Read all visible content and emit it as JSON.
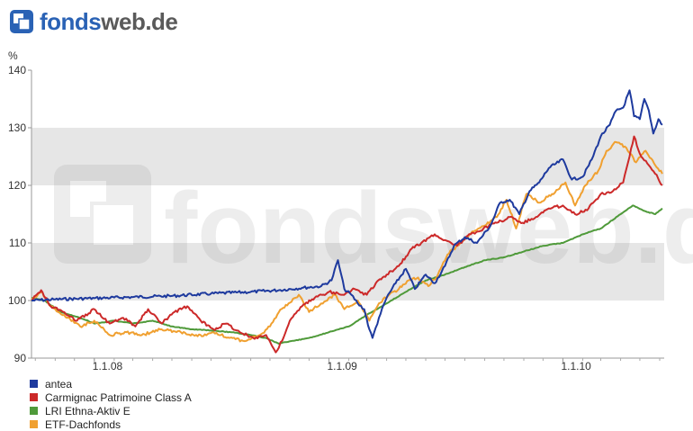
{
  "brand": {
    "prefix": "fonds",
    "suffix": "web.de"
  },
  "watermark_text": "fondsweb.de",
  "chart_data": {
    "type": "line",
    "title": "",
    "xlabel": "",
    "ylabel": "%",
    "ylim": [
      90,
      140
    ],
    "yticks": [
      90,
      100,
      110,
      120,
      130,
      140
    ],
    "xlim": [
      "2007-09-25",
      "2010-06-08"
    ],
    "xticks": [
      {
        "date": "2008-01-01",
        "label": "1.1.08"
      },
      {
        "date": "2009-01-01",
        "label": "1.1.09"
      },
      {
        "date": "2010-01-01",
        "label": "1.1.10"
      }
    ],
    "grid": "alternating horizontal bands",
    "legend_position": "bottom-left",
    "series": [
      {
        "name": "antea",
        "color": "#1e3a9e",
        "points": [
          [
            "2007-09-25",
            100.0
          ],
          [
            "2007-11-01",
            100.2
          ],
          [
            "2008-01-01",
            100.4
          ],
          [
            "2008-03-01",
            100.6
          ],
          [
            "2008-05-01",
            100.8
          ],
          [
            "2008-07-01",
            101.2
          ],
          [
            "2008-09-01",
            101.5
          ],
          [
            "2008-10-15",
            101.8
          ],
          [
            "2008-11-20",
            102.2
          ],
          [
            "2008-12-20",
            102.5
          ],
          [
            "2009-01-05",
            103.5
          ],
          [
            "2009-01-15",
            107.0
          ],
          [
            "2009-01-25",
            102.0
          ],
          [
            "2009-02-05",
            101.0
          ],
          [
            "2009-02-15",
            99.5
          ],
          [
            "2009-02-25",
            98.5
          ],
          [
            "2009-03-05",
            95.0
          ],
          [
            "2009-03-10",
            93.5
          ],
          [
            "2009-03-20",
            97.0
          ],
          [
            "2009-04-01",
            100.5
          ],
          [
            "2009-04-15",
            103.0
          ],
          [
            "2009-05-01",
            105.5
          ],
          [
            "2009-05-15",
            102.0
          ],
          [
            "2009-06-01",
            104.5
          ],
          [
            "2009-06-15",
            103.0
          ],
          [
            "2009-07-01",
            106.0
          ],
          [
            "2009-07-15",
            109.5
          ],
          [
            "2009-08-01",
            111.0
          ],
          [
            "2009-08-20",
            110.0
          ],
          [
            "2009-09-10",
            113.0
          ],
          [
            "2009-09-25",
            117.0
          ],
          [
            "2009-10-10",
            117.5
          ],
          [
            "2009-10-25",
            115.0
          ],
          [
            "2009-11-10",
            119.0
          ],
          [
            "2009-11-25",
            120.5
          ],
          [
            "2009-12-10",
            123.0
          ],
          [
            "2010-01-01",
            124.5
          ],
          [
            "2010-01-15",
            121.0
          ],
          [
            "2010-02-01",
            121.5
          ],
          [
            "2010-02-15",
            124.5
          ],
          [
            "2010-03-01",
            128.5
          ],
          [
            "2010-03-15",
            130.5
          ],
          [
            "2010-03-25",
            133.0
          ],
          [
            "2010-04-05",
            133.5
          ],
          [
            "2010-04-15",
            136.5
          ],
          [
            "2010-04-22",
            132.0
          ],
          [
            "2010-05-01",
            131.5
          ],
          [
            "2010-05-08",
            135.0
          ],
          [
            "2010-05-15",
            133.0
          ],
          [
            "2010-05-22",
            129.0
          ],
          [
            "2010-05-30",
            131.5
          ],
          [
            "2010-06-05",
            130.5
          ]
        ]
      },
      {
        "name": "Carmignac Patrimoine Class A",
        "color": "#cc2929",
        "points": [
          [
            "2007-09-25",
            100.0
          ],
          [
            "2007-10-10",
            101.8
          ],
          [
            "2007-10-25",
            99.0
          ],
          [
            "2007-11-15",
            98.0
          ],
          [
            "2007-12-05",
            96.5
          ],
          [
            "2008-01-01",
            98.5
          ],
          [
            "2008-01-25",
            96.0
          ],
          [
            "2008-02-15",
            97.0
          ],
          [
            "2008-03-05",
            95.5
          ],
          [
            "2008-03-25",
            98.5
          ],
          [
            "2008-04-15",
            96.0
          ],
          [
            "2008-05-05",
            98.0
          ],
          [
            "2008-05-25",
            99.0
          ],
          [
            "2008-06-15",
            96.5
          ],
          [
            "2008-07-05",
            95.0
          ],
          [
            "2008-07-25",
            96.0
          ],
          [
            "2008-08-15",
            94.5
          ],
          [
            "2008-09-05",
            93.5
          ],
          [
            "2008-09-25",
            94.0
          ],
          [
            "2008-10-10",
            91.0
          ],
          [
            "2008-10-20",
            93.0
          ],
          [
            "2008-11-01",
            96.5
          ],
          [
            "2008-11-20",
            99.0
          ],
          [
            "2008-12-10",
            100.5
          ],
          [
            "2009-01-01",
            101.5
          ],
          [
            "2009-01-20",
            101.0
          ],
          [
            "2009-02-10",
            102.0
          ],
          [
            "2009-03-01",
            101.0
          ],
          [
            "2009-03-15",
            103.0
          ],
          [
            "2009-04-01",
            104.5
          ],
          [
            "2009-04-20",
            106.0
          ],
          [
            "2009-05-10",
            109.0
          ],
          [
            "2009-05-25",
            110.0
          ],
          [
            "2009-06-15",
            111.5
          ],
          [
            "2009-07-01",
            110.5
          ],
          [
            "2009-07-20",
            109.5
          ],
          [
            "2009-08-10",
            111.5
          ],
          [
            "2009-08-30",
            112.5
          ],
          [
            "2009-09-20",
            113.5
          ],
          [
            "2009-10-10",
            114.5
          ],
          [
            "2009-10-30",
            113.5
          ],
          [
            "2009-11-20",
            114.5
          ],
          [
            "2009-12-10",
            116.0
          ],
          [
            "2010-01-01",
            116.5
          ],
          [
            "2010-01-20",
            115.0
          ],
          [
            "2010-02-10",
            116.0
          ],
          [
            "2010-03-01",
            118.5
          ],
          [
            "2010-03-20",
            119.0
          ],
          [
            "2010-04-05",
            120.5
          ],
          [
            "2010-04-15",
            125.0
          ],
          [
            "2010-04-22",
            128.5
          ],
          [
            "2010-05-01",
            125.5
          ],
          [
            "2010-05-15",
            123.5
          ],
          [
            "2010-05-25",
            122.0
          ],
          [
            "2010-06-05",
            120.0
          ]
        ]
      },
      {
        "name": "LRI Ethna-Aktiv E",
        "color": "#4f9a3a",
        "points": [
          [
            "2007-09-25",
            100.5
          ],
          [
            "2007-10-15",
            100.0
          ],
          [
            "2007-11-10",
            98.0
          ],
          [
            "2007-12-10",
            97.0
          ],
          [
            "2008-01-01",
            96.0
          ],
          [
            "2008-02-01",
            96.5
          ],
          [
            "2008-03-01",
            96.0
          ],
          [
            "2008-04-01",
            96.5
          ],
          [
            "2008-05-01",
            95.5
          ],
          [
            "2008-06-01",
            95.0
          ],
          [
            "2008-07-01",
            94.8
          ],
          [
            "2008-08-01",
            94.5
          ],
          [
            "2008-09-01",
            94.0
          ],
          [
            "2008-09-25",
            93.5
          ],
          [
            "2008-10-15",
            92.5
          ],
          [
            "2008-11-05",
            93.0
          ],
          [
            "2008-12-01",
            93.5
          ],
          [
            "2009-01-01",
            94.5
          ],
          [
            "2009-02-01",
            95.5
          ],
          [
            "2009-03-01",
            97.5
          ],
          [
            "2009-04-01",
            99.5
          ],
          [
            "2009-05-01",
            101.5
          ],
          [
            "2009-06-01",
            103.5
          ],
          [
            "2009-07-01",
            104.5
          ],
          [
            "2009-08-01",
            105.8
          ],
          [
            "2009-09-01",
            107.0
          ],
          [
            "2009-10-01",
            107.5
          ],
          [
            "2009-11-01",
            108.5
          ],
          [
            "2009-12-01",
            109.5
          ],
          [
            "2010-01-01",
            110.0
          ],
          [
            "2010-02-01",
            111.5
          ],
          [
            "2010-03-01",
            112.5
          ],
          [
            "2010-04-01",
            115.0
          ],
          [
            "2010-04-20",
            116.5
          ],
          [
            "2010-05-10",
            115.5
          ],
          [
            "2010-05-25",
            115.0
          ],
          [
            "2010-06-05",
            116.0
          ]
        ]
      },
      {
        "name": "ETF-Dachfonds",
        "color": "#f0a030",
        "points": [
          [
            "2007-09-25",
            100.0
          ],
          [
            "2007-10-10",
            101.5
          ],
          [
            "2007-10-25",
            99.0
          ],
          [
            "2007-11-15",
            97.5
          ],
          [
            "2007-12-10",
            95.5
          ],
          [
            "2008-01-01",
            96.5
          ],
          [
            "2008-01-25",
            94.0
          ],
          [
            "2008-02-20",
            94.5
          ],
          [
            "2008-03-15",
            94.0
          ],
          [
            "2008-04-15",
            95.0
          ],
          [
            "2008-05-15",
            94.5
          ],
          [
            "2008-06-10",
            93.8
          ],
          [
            "2008-07-05",
            94.5
          ],
          [
            "2008-07-30",
            93.5
          ],
          [
            "2008-08-20",
            93.0
          ],
          [
            "2008-09-15",
            94.0
          ],
          [
            "2008-10-01",
            95.5
          ],
          [
            "2008-10-15",
            98.0
          ],
          [
            "2008-10-30",
            99.5
          ],
          [
            "2008-11-15",
            101.0
          ],
          [
            "2008-12-01",
            98.0
          ],
          [
            "2008-12-20",
            99.5
          ],
          [
            "2009-01-10",
            101.0
          ],
          [
            "2009-01-25",
            98.5
          ],
          [
            "2009-02-15",
            100.0
          ],
          [
            "2009-03-05",
            96.5
          ],
          [
            "2009-03-20",
            99.5
          ],
          [
            "2009-04-05",
            101.0
          ],
          [
            "2009-04-20",
            102.0
          ],
          [
            "2009-05-05",
            103.5
          ],
          [
            "2009-05-20",
            104.0
          ],
          [
            "2009-06-05",
            102.5
          ],
          [
            "2009-06-20",
            104.5
          ],
          [
            "2009-07-05",
            108.0
          ],
          [
            "2009-07-25",
            110.0
          ],
          [
            "2009-08-15",
            112.0
          ],
          [
            "2009-09-01",
            113.0
          ],
          [
            "2009-09-20",
            114.5
          ],
          [
            "2009-10-05",
            117.5
          ],
          [
            "2009-10-20",
            112.5
          ],
          [
            "2009-11-05",
            118.5
          ],
          [
            "2009-11-25",
            117.0
          ],
          [
            "2009-12-15",
            118.5
          ],
          [
            "2010-01-05",
            120.5
          ],
          [
            "2010-01-20",
            116.5
          ],
          [
            "2010-02-05",
            120.0
          ],
          [
            "2010-02-25",
            122.5
          ],
          [
            "2010-03-10",
            126.0
          ],
          [
            "2010-03-25",
            127.5
          ],
          [
            "2010-04-10",
            126.5
          ],
          [
            "2010-04-25",
            124.0
          ],
          [
            "2010-05-10",
            126.0
          ],
          [
            "2010-05-25",
            123.5
          ],
          [
            "2010-06-05",
            122.0
          ]
        ]
      }
    ]
  }
}
